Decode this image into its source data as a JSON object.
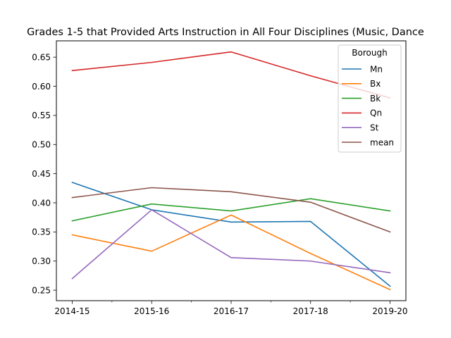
{
  "chart_data": {
    "type": "line",
    "title": "Grades 1-5 that Provided Arts Instruction in All Four Disciplines (Music, Dance",
    "xlabel": "",
    "ylabel": "",
    "categories": [
      "2014-15",
      "2015-16",
      "2016-17",
      "2017-18",
      "2019-20"
    ],
    "ylim": [
      0.232,
      0.678
    ],
    "yticks": [
      0.25,
      0.3,
      0.35,
      0.4,
      0.45,
      0.5,
      0.55,
      0.6,
      0.65
    ],
    "ytick_labels": [
      "0.25",
      "0.30",
      "0.35",
      "0.40",
      "0.45",
      "0.50",
      "0.55",
      "0.60",
      "0.65"
    ],
    "legend_title": "Borough",
    "legend_position": "top-right",
    "grid": false,
    "series": [
      {
        "name": "Mn",
        "color": "#1f77b4",
        "values": [
          0.435,
          0.388,
          0.367,
          0.368,
          0.257
        ]
      },
      {
        "name": "Bx",
        "color": "#ff7f0e",
        "values": [
          0.345,
          0.317,
          0.379,
          0.313,
          0.251
        ]
      },
      {
        "name": "Bk",
        "color": "#2ca02c",
        "values": [
          0.369,
          0.398,
          0.386,
          0.407,
          0.386
        ]
      },
      {
        "name": "Qn",
        "color": "#d62728",
        "values": [
          0.627,
          0.641,
          0.659,
          0.618,
          0.58
        ]
      },
      {
        "name": "St",
        "color": "#9467bd",
        "values": [
          0.27,
          0.388,
          0.306,
          0.3,
          0.28
        ]
      },
      {
        "name": "mean",
        "color": "#8c564b",
        "values": [
          0.409,
          0.426,
          0.419,
          0.401,
          0.35
        ]
      }
    ]
  }
}
